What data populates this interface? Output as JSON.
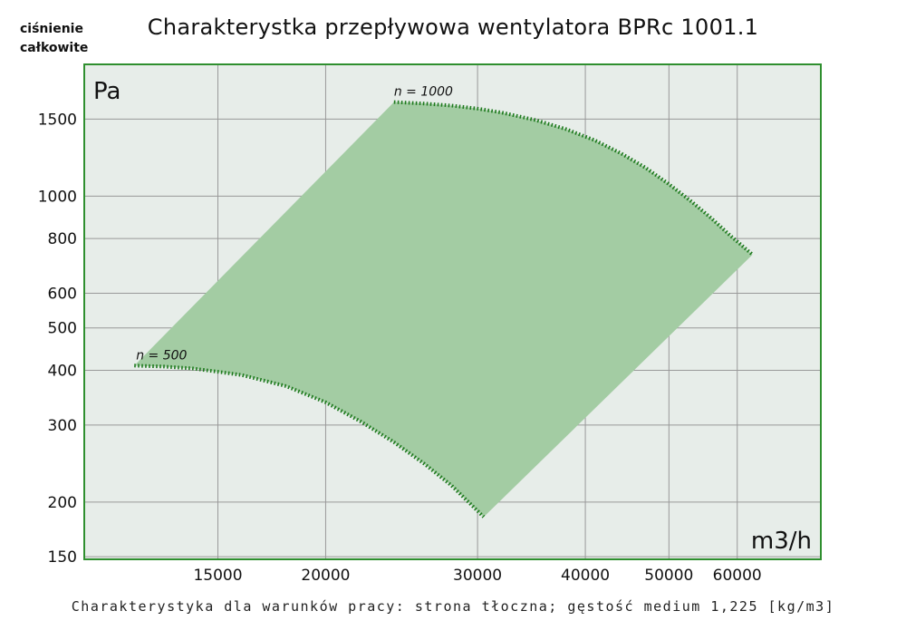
{
  "title": "Charakterystka przepływowa wentylatora BPRc 1001.1",
  "y_caption": [
    "ciśnienie",
    "całkowite"
  ],
  "footer": "Charakterystyka dla warunków pracy: strona tłoczna; gęstość medium 1,225 [kg/m3]",
  "colors": {
    "frame": "#2f8f2f",
    "plot_bg": "#e7ede9",
    "grid": "#999999",
    "region": "#a3cca3",
    "curve": "#1e7a1e"
  },
  "chart_data": {
    "type": "area",
    "xscale": "log",
    "yscale": "log",
    "xlim": [
      10500,
      75000
    ],
    "ylim": [
      148,
      2000
    ],
    "xticks": [
      15000,
      20000,
      30000,
      40000,
      50000,
      60000
    ],
    "xtick_labels": [
      "15000",
      "20000",
      "30000",
      "40000",
      "50000",
      "60000"
    ],
    "yticks": [
      150,
      200,
      300,
      400,
      500,
      600,
      800,
      1000,
      1500
    ],
    "ytick_labels": [
      "150",
      "200",
      "300",
      "400",
      "500",
      "600",
      "800",
      "1000",
      "1500"
    ],
    "x_unit": "m3/h",
    "y_unit": "Pa",
    "grid": true,
    "series": [
      {
        "name": "n = 500",
        "x": [
          12000,
          13000,
          14000,
          15000,
          16000,
          18000,
          20000,
          22000,
          24000,
          26000,
          28000,
          30500
        ],
        "y": [
          410,
          408,
          404,
          397,
          390,
          368,
          338,
          305,
          274,
          245,
          218,
          185
        ]
      },
      {
        "name": "n = 1000",
        "x": [
          24000,
          26000,
          28000,
          30000,
          32000,
          35000,
          38000,
          41000,
          44000,
          47000,
          50000,
          53000,
          56000,
          59000,
          62500
        ],
        "y": [
          1640,
          1628,
          1610,
          1585,
          1552,
          1492,
          1422,
          1342,
          1252,
          1160,
          1065,
          975,
          890,
          810,
          735
        ]
      }
    ]
  }
}
